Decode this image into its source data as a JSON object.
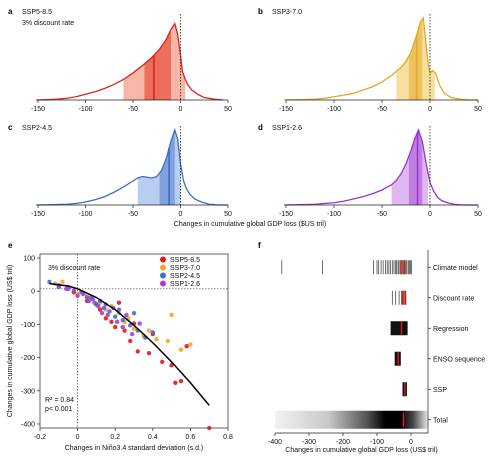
{
  "chart_data": [
    {
      "panel": "a",
      "type": "area",
      "label": "SSP5-8.5",
      "sublabel": "3% discount rate",
      "color": "#d7261e",
      "shade_light": "#f6b7a8",
      "shade_mid": "#ec6e5c",
      "xlim": [
        -150,
        50
      ],
      "xticks": [
        "-150",
        "-100",
        "-50",
        "0",
        "50"
      ],
      "x": [
        -152,
        -140,
        -130,
        -120,
        -110,
        -100,
        -90,
        -80,
        -70,
        -60,
        -50,
        -40,
        -30,
        -22,
        -15,
        -10,
        -6,
        -3,
        0,
        2,
        5,
        8,
        12,
        18,
        25,
        35,
        45
      ],
      "density": [
        0.0,
        0.005,
        0.01,
        0.02,
        0.04,
        0.07,
        0.1,
        0.14,
        0.19,
        0.25,
        0.33,
        0.42,
        0.52,
        0.62,
        0.74,
        0.86,
        0.93,
        0.8,
        0.55,
        0.35,
        0.25,
        0.18,
        0.12,
        0.07,
        0.03,
        0.01,
        0.0
      ],
      "shade_outer": [
        -60,
        5
      ],
      "shade_inner": [
        -38,
        -10
      ],
      "median": -28
    },
    {
      "panel": "b",
      "type": "area",
      "label": "SSP3-7.0",
      "color": "#e2a72e",
      "shade_light": "#f7df9e",
      "shade_mid": "#eec35c",
      "xlim": [
        -150,
        50
      ],
      "xticks": [
        "-150",
        "-100",
        "-50",
        "0",
        "50"
      ],
      "x": [
        -152,
        -140,
        -130,
        -120,
        -110,
        -100,
        -90,
        -80,
        -70,
        -60,
        -50,
        -40,
        -30,
        -25,
        -20,
        -15,
        -10,
        -7,
        -5,
        -2,
        0,
        3,
        6,
        10,
        15,
        22,
        30,
        40,
        50
      ],
      "density": [
        0.0,
        0.003,
        0.006,
        0.01,
        0.02,
        0.04,
        0.06,
        0.08,
        0.12,
        0.16,
        0.22,
        0.3,
        0.4,
        0.47,
        0.58,
        0.75,
        0.95,
        1.0,
        0.78,
        0.45,
        0.33,
        0.36,
        0.32,
        0.18,
        0.08,
        0.03,
        0.01,
        0.0,
        0.0
      ],
      "shade_outer": [
        -35,
        5
      ],
      "shade_inner": [
        -22,
        -8
      ],
      "median": -14
    },
    {
      "panel": "c",
      "type": "area",
      "label": "SSP2-4.5",
      "color": "#3b6fc4",
      "shade_light": "#b9cdf0",
      "shade_mid": "#7fa1df",
      "xlim": [
        -150,
        50
      ],
      "xticks": [
        "-150",
        "-100",
        "-50",
        "0",
        "50"
      ],
      "x": [
        -152,
        -140,
        -130,
        -120,
        -110,
        -100,
        -90,
        -80,
        -70,
        -60,
        -50,
        -45,
        -40,
        -35,
        -30,
        -25,
        -20,
        -15,
        -10,
        -6,
        -3,
        0,
        3,
        6,
        10,
        15,
        22,
        30,
        40,
        50
      ],
      "density": [
        0.0,
        0.003,
        0.006,
        0.01,
        0.02,
        0.04,
        0.07,
        0.11,
        0.17,
        0.24,
        0.32,
        0.36,
        0.38,
        0.37,
        0.36,
        0.38,
        0.46,
        0.62,
        0.85,
        1.0,
        0.88,
        0.55,
        0.33,
        0.22,
        0.14,
        0.08,
        0.04,
        0.01,
        0.0,
        0.0
      ],
      "shade_outer": [
        -45,
        0
      ],
      "shade_inner": [
        -22,
        -6
      ],
      "median": -12
    },
    {
      "panel": "d",
      "type": "area",
      "label": "SSP1-2.6",
      "color": "#9a34c9",
      "shade_light": "#dfb8f1",
      "shade_mid": "#c07ee2",
      "xlim": [
        -150,
        50
      ],
      "xticks": [
        "-150",
        "-100",
        "-50",
        "0",
        "50"
      ],
      "x": [
        -152,
        -140,
        -130,
        -120,
        -110,
        -100,
        -90,
        -80,
        -70,
        -60,
        -50,
        -40,
        -35,
        -30,
        -25,
        -20,
        -16,
        -12,
        -8,
        -4,
        0,
        4,
        8,
        12,
        18,
        25,
        35,
        45,
        50
      ],
      "density": [
        0.0,
        0.003,
        0.006,
        0.01,
        0.02,
        0.03,
        0.05,
        0.08,
        0.11,
        0.15,
        0.2,
        0.27,
        0.33,
        0.42,
        0.55,
        0.72,
        0.88,
        1.0,
        0.85,
        0.55,
        0.3,
        0.18,
        0.1,
        0.06,
        0.03,
        0.01,
        0.0,
        0.0,
        0.0
      ],
      "shade_outer": [
        -40,
        -2
      ],
      "shade_inner": [
        -22,
        -8
      ],
      "median": -13
    },
    {
      "panel": "e",
      "type": "scatter",
      "xlabel": "Changes in Niño3.4 standard deviation (s.d.)",
      "ylabel": "Changes in cumulative global GDP loss (US$ tril)",
      "annotation": "3% discount rate",
      "stats_r2": "R² = 0.84",
      "stats_p": "p< 0.001",
      "xlim": [
        -0.2,
        0.8
      ],
      "ylim": [
        -400,
        100
      ],
      "xticks": [
        "-0.2",
        "0",
        "0.2",
        "0.4",
        "0.6",
        "0.8"
      ],
      "yticks": [
        "100",
        "0",
        "-100",
        "-200",
        "-300",
        "-400"
      ],
      "series": [
        {
          "name": "SSP5-8.5",
          "color": "#e01b1b",
          "points": [
            [
              -0.02,
              -10
            ],
            [
              0.05,
              -35
            ],
            [
              0.1,
              -45
            ],
            [
              0.12,
              -60
            ],
            [
              0.15,
              -85
            ],
            [
              0.18,
              -95
            ],
            [
              0.2,
              -110
            ],
            [
              0.25,
              -120
            ],
            [
              0.28,
              -150
            ],
            [
              0.32,
              -180
            ],
            [
              0.38,
              -185
            ],
            [
              0.45,
              -210
            ],
            [
              0.52,
              -270
            ],
            [
              0.55,
              -265
            ],
            [
              0.58,
              -165
            ],
            [
              0.7,
              -400
            ],
            [
              0.22,
              -40
            ],
            [
              0.3,
              -100
            ],
            [
              0.4,
              -130
            ],
            [
              0.5,
              -220
            ]
          ]
        },
        {
          "name": "SSP3-7.0",
          "color": "#f1a62a",
          "points": [
            [
              -0.12,
              15
            ],
            [
              -0.08,
              20
            ],
            [
              -0.05,
              5
            ],
            [
              0.0,
              -15
            ],
            [
              0.05,
              -20
            ],
            [
              0.08,
              -25
            ],
            [
              0.15,
              -60
            ],
            [
              0.18,
              -50
            ],
            [
              0.22,
              -70
            ],
            [
              0.25,
              -95
            ],
            [
              0.3,
              -115
            ],
            [
              0.35,
              -135
            ],
            [
              0.38,
              -120
            ],
            [
              0.42,
              -145
            ],
            [
              0.5,
              -75
            ],
            [
              0.55,
              -175
            ],
            [
              0.6,
              -160
            ],
            [
              0.48,
              -150
            ],
            [
              0.27,
              -85
            ],
            [
              0.12,
              -40
            ]
          ]
        },
        {
          "name": "SSP2-4.5",
          "color": "#3f6fd0",
          "points": [
            [
              -0.15,
              20
            ],
            [
              -0.1,
              5
            ],
            [
              -0.05,
              0
            ],
            [
              0.02,
              -10
            ],
            [
              0.05,
              -25
            ],
            [
              0.08,
              -30
            ],
            [
              0.1,
              -45
            ],
            [
              0.14,
              -55
            ],
            [
              0.17,
              -65
            ],
            [
              0.2,
              -80
            ],
            [
              0.24,
              -90
            ],
            [
              0.28,
              -105
            ],
            [
              0.32,
              -120
            ],
            [
              0.36,
              -140
            ],
            [
              0.4,
              -125
            ],
            [
              0.12,
              -35
            ],
            [
              0.22,
              -60
            ],
            [
              0.3,
              -70
            ]
          ]
        },
        {
          "name": "SSP1-2.6",
          "color": "#a43fd1",
          "points": [
            [
              -0.1,
              10
            ],
            [
              -0.06,
              0
            ],
            [
              -0.02,
              -5
            ],
            [
              0.0,
              -20
            ],
            [
              0.03,
              -15
            ],
            [
              0.06,
              -35
            ],
            [
              0.09,
              -40
            ],
            [
              0.11,
              -50
            ],
            [
              0.13,
              -70
            ],
            [
              0.16,
              -75
            ],
            [
              0.19,
              -55
            ],
            [
              0.21,
              -95
            ],
            [
              0.24,
              -110
            ],
            [
              0.26,
              -75
            ],
            [
              0.29,
              -130
            ],
            [
              0.33,
              -100
            ],
            [
              0.07,
              -25
            ],
            [
              0.15,
              -45
            ]
          ]
        }
      ],
      "fit": [
        [
          -0.15,
          15
        ],
        [
          -0.05,
          8
        ],
        [
          0.0,
          0
        ],
        [
          0.1,
          -25
        ],
        [
          0.2,
          -60
        ],
        [
          0.3,
          -105
        ],
        [
          0.4,
          -155
        ],
        [
          0.5,
          -210
        ],
        [
          0.6,
          -270
        ],
        [
          0.7,
          -335
        ]
      ]
    },
    {
      "panel": "f",
      "type": "heatmap",
      "xlabel": "Changes in cumulative global GDP loss (US$ tril)",
      "xlim": [
        -400,
        50
      ],
      "xticks": [
        "-400",
        "-300",
        "-200",
        "-100",
        "0"
      ],
      "rows": [
        {
          "label": "Climate model",
          "lines": [
            -380,
            -260,
            -110,
            -100,
            -95,
            -88,
            -82,
            -75,
            -70,
            -65,
            -60,
            -55,
            -50,
            -45,
            -42,
            -38,
            -35,
            -30,
            -28,
            -25,
            -22,
            -20,
            -18,
            -15,
            -12,
            -8,
            -5,
            -2,
            2
          ],
          "red": [
            -30,
            -20
          ]
        },
        {
          "label": "Discount rate",
          "lines": [
            -55,
            -45,
            -35,
            -28,
            -22,
            -15
          ],
          "red": [
            -25,
            -18
          ]
        },
        {
          "label": "Regression",
          "band": [
            -60,
            -10
          ],
          "red": [
            -28
          ]
        },
        {
          "label": "ENSO sequence",
          "band": [
            -48,
            -30
          ],
          "red": [
            -38
          ]
        },
        {
          "label": "SSP",
          "band": [
            -25,
            -12
          ],
          "red": [
            -18
          ]
        },
        {
          "label": "Total",
          "band": [
            -400,
            50
          ],
          "core": [
            -90,
            5
          ],
          "red": [
            -22
          ]
        }
      ]
    }
  ],
  "shared_xlabel_top": "Changes in cumulative global GDP loss ($US tril)"
}
